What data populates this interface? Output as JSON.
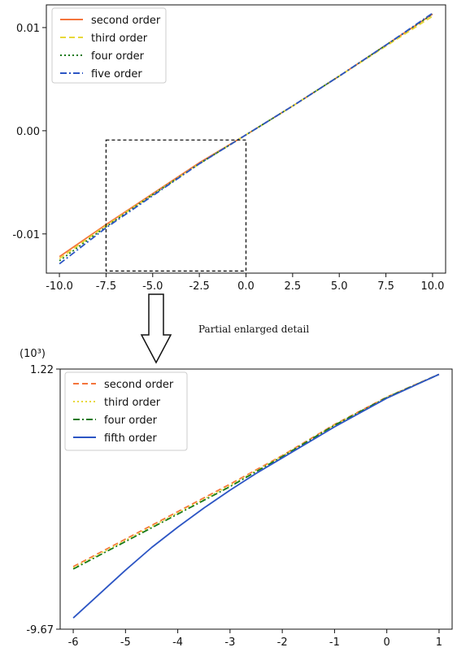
{
  "annotation": "Partial enlarged detail",
  "chart_data": [
    {
      "type": "line",
      "title": "",
      "xlabel": "",
      "ylabel": "",
      "xlim": [
        -10.7,
        10.7
      ],
      "ylim": [
        -0.0138,
        0.0122
      ],
      "xticks": [
        -10.0,
        -7.5,
        -5.0,
        -2.5,
        0.0,
        2.5,
        5.0,
        7.5,
        10.0
      ],
      "xtick_labels": [
        "-10.0",
        "-7.5",
        "-5.0",
        "-2.5",
        "0.0",
        "2.5",
        "5.0",
        "7.5",
        "10.0"
      ],
      "yticks": [
        -0.01,
        0.0,
        0.01
      ],
      "ytick_labels": [
        "-0.01",
        "0.00",
        "0.01"
      ],
      "legend_position": "top-left",
      "zoom_box": {
        "x": [
          -7.5,
          0.0
        ],
        "y": [
          -0.0136,
          -0.0009
        ]
      },
      "series": [
        {
          "name": "second order",
          "color": "#f4743b",
          "style": "solid",
          "x": [
            -10,
            -7.5,
            -5,
            -2.5,
            0,
            2.5,
            5,
            7.5,
            10
          ],
          "y": [
            -0.0122,
            -0.0091,
            -0.0061,
            -0.0031,
            -0.0004,
            0.0024,
            0.0053,
            0.0083,
            0.0113
          ]
        },
        {
          "name": "third order",
          "color": "#e8d83a",
          "style": "dashed",
          "x": [
            -10,
            -7.5,
            -5,
            -2.5,
            0,
            2.5,
            5,
            7.5,
            10
          ],
          "y": [
            -0.0124,
            -0.0092,
            -0.0062,
            -0.0032,
            -0.0004,
            0.0024,
            0.0053,
            0.0082,
            0.0111
          ]
        },
        {
          "name": "four order",
          "color": "#1a7a1a",
          "style": "dotted",
          "x": [
            -10,
            -7.5,
            -5,
            -2.5,
            0,
            2.5,
            5,
            7.5,
            10
          ],
          "y": [
            -0.0126,
            -0.0093,
            -0.0062,
            -0.0032,
            -0.0004,
            0.0024,
            0.0053,
            0.0083,
            0.0113
          ]
        },
        {
          "name": "five order",
          "color": "#2c55c4",
          "style": "dashdot",
          "x": [
            -10,
            -7.5,
            -5,
            -2.5,
            0,
            2.5,
            5,
            7.5,
            10
          ],
          "y": [
            -0.0129,
            -0.0094,
            -0.0063,
            -0.0032,
            -0.0004,
            0.0024,
            0.0053,
            0.0083,
            0.0114
          ]
        }
      ]
    },
    {
      "type": "line",
      "title": "",
      "xlabel": "",
      "ylabel": "(10³)",
      "xlim": [
        -6.25,
        1.25
      ],
      "ylim": [
        -9.67,
        1.22
      ],
      "xticks": [
        -6,
        -5,
        -4,
        -3,
        -2,
        -1,
        0,
        1
      ],
      "xtick_labels": [
        "-6",
        "-5",
        "-4",
        "-3",
        "-2",
        "-1",
        "0",
        "1"
      ],
      "yticks": [
        -9.67,
        1.22
      ],
      "ytick_labels": [
        "-9.67",
        "1.22"
      ],
      "legend_position": "top-left",
      "series": [
        {
          "name": "second order",
          "color": "#f4743b",
          "style": "dashed",
          "x": [
            -6,
            -5,
            -4,
            -3,
            -2,
            -1,
            0,
            1
          ],
          "y": [
            -7.05,
            -5.9,
            -4.75,
            -3.6,
            -2.4,
            -1.1,
            0.05,
            1.0
          ]
        },
        {
          "name": "third order",
          "color": "#e8d83a",
          "style": "dotted",
          "x": [
            -6,
            -5,
            -4,
            -3,
            -2,
            -1,
            0,
            1
          ],
          "y": [
            -7.1,
            -5.95,
            -4.8,
            -3.65,
            -2.42,
            -1.12,
            0.04,
            1.0
          ]
        },
        {
          "name": "four order",
          "color": "#1a7a1a",
          "style": "dashdot",
          "x": [
            -6,
            -5,
            -4,
            -3,
            -2,
            -1,
            0,
            1
          ],
          "y": [
            -7.15,
            -6.0,
            -4.85,
            -3.7,
            -2.45,
            -1.13,
            0.03,
            1.0
          ]
        },
        {
          "name": "fifth order",
          "color": "#2c55c4",
          "style": "solid",
          "x": [
            -6,
            -5.5,
            -5,
            -4.5,
            -4,
            -3.5,
            -3,
            -2.5,
            -2,
            -1,
            0,
            1
          ],
          "y": [
            -9.2,
            -8.2,
            -7.2,
            -6.25,
            -5.4,
            -4.6,
            -3.85,
            -3.15,
            -2.5,
            -1.2,
            0.0,
            1.0
          ]
        }
      ]
    }
  ]
}
